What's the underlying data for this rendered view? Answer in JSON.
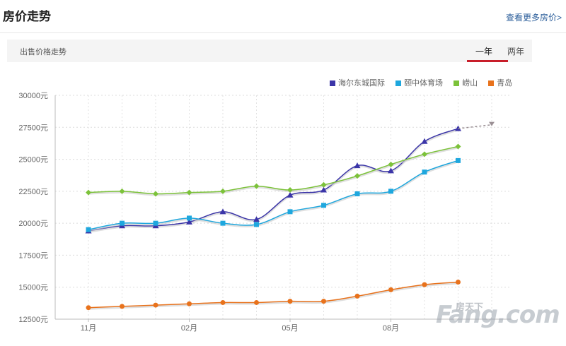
{
  "header": {
    "title": "房价走势",
    "more_link": "查看更多房价>"
  },
  "subbar": {
    "label": "出售价格走势",
    "tabs": [
      {
        "label": "一年",
        "active": true
      },
      {
        "label": "两年",
        "active": false
      }
    ]
  },
  "watermark": {
    "cn": "房天下",
    "main": "Fang.com"
  },
  "colors": {
    "series1": "#3b35a8",
    "series2": "#1ea7de",
    "series3": "#7cc23a",
    "series4": "#e8721c",
    "forecast": "#9a8f94"
  },
  "chart_data": {
    "type": "line",
    "ylim": [
      12500,
      30000
    ],
    "yticks": [
      "30000元",
      "27500元",
      "25000元",
      "22500元",
      "20000元",
      "17500元",
      "15000元",
      "12500元"
    ],
    "ytick_values": [
      30000,
      27500,
      25000,
      22500,
      20000,
      17500,
      15000,
      12500
    ],
    "x_tick_labels": [
      {
        "index": 0,
        "label": "11月"
      },
      {
        "index": 3,
        "label": "02月"
      },
      {
        "index": 6,
        "label": "05月"
      },
      {
        "index": 9,
        "label": "08月"
      }
    ],
    "x_count": 13,
    "series": [
      {
        "name": "海尔东城国际",
        "marker": "triangle",
        "color_key": "series1",
        "values": [
          19400,
          19800,
          19800,
          20100,
          20900,
          20300,
          22200,
          22600,
          24500,
          24100,
          26400,
          27400
        ]
      },
      {
        "name": "颐中体育场",
        "marker": "square",
        "color_key": "series2",
        "values": [
          19500,
          20000,
          20000,
          20400,
          20000,
          19900,
          20900,
          21400,
          22300,
          22500,
          24000,
          24900
        ]
      },
      {
        "name": "崂山",
        "marker": "diamond",
        "color_key": "series3",
        "values": [
          22400,
          22500,
          22300,
          22400,
          22500,
          22900,
          22600,
          23000,
          23700,
          24600,
          25400,
          26000
        ]
      },
      {
        "name": "青岛",
        "marker": "circle",
        "color_key": "series4",
        "values": [
          13400,
          13500,
          13600,
          13700,
          13800,
          13800,
          13900,
          13900,
          14300,
          14800,
          15200,
          15400
        ]
      }
    ],
    "forecast": {
      "from_index": 11,
      "from_value": 27400,
      "to_index": 12,
      "to_value": 27700
    },
    "grid": true,
    "legend": "top-right"
  }
}
